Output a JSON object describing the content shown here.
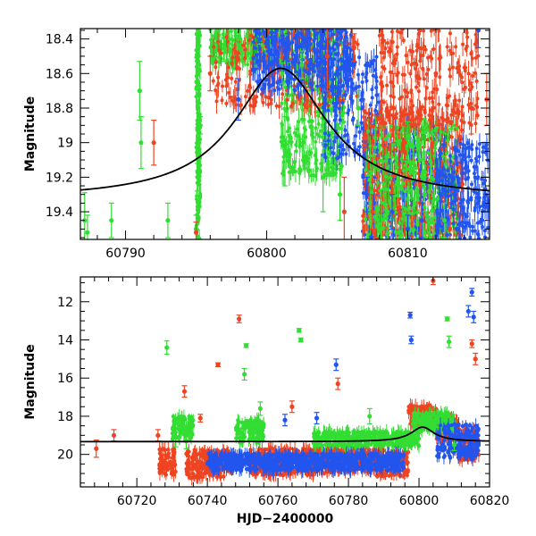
{
  "chart_data": [
    {
      "type": "scatter",
      "panel": "top",
      "title": "",
      "xlabel": "",
      "ylabel": "Magnitude",
      "xlim": [
        60786.8,
        60815.8
      ],
      "ylim": [
        19.56,
        18.34
      ],
      "y_inverted": true,
      "grid": false,
      "legend": "none",
      "xticks": [
        60790,
        60800,
        60810
      ],
      "yticks": [
        18.4,
        18.6,
        18.8,
        19,
        19.2,
        19.4
      ],
      "xtick_labels": [
        "60790",
        "60800",
        "60810"
      ],
      "ytick_labels": [
        "18.4",
        "18.6",
        "18.8",
        "19",
        "19.2",
        "19.4"
      ],
      "series": [
        {
          "color": "#33dd33",
          "points": [
            [
              60787.1,
              19.45,
              0.16
            ],
            [
              60787.3,
              19.52,
              0.1
            ],
            [
              60789.0,
              19.45,
              0.1
            ],
            [
              60791.0,
              18.7,
              0.17
            ],
            [
              60791.1,
              19.0,
              0.15
            ],
            [
              60793.0,
              19.45,
              0.1
            ],
            [
              60795.0,
              19.5,
              0.08
            ],
            [
              60795.1,
              19.2,
              0.08
            ],
            [
              60795.2,
              19.0,
              0.06
            ],
            [
              60795.3,
              18.9,
              0.05
            ],
            [
              60797.0,
              18.45,
              0.08
            ],
            [
              60798.0,
              18.4,
              0.06
            ],
            [
              60799.5,
              18.38,
              0.05
            ],
            [
              60801.1,
              18.6,
              0.06
            ],
            [
              60801.3,
              19.05,
              0.2
            ],
            [
              60802.5,
              18.55,
              0.08
            ],
            [
              60804.0,
              19.2,
              0.2
            ],
            [
              60805.2,
              19.3,
              0.15
            ],
            [
              60806.5,
              18.8,
              0.1
            ],
            [
              60808.1,
              19.5,
              0.08
            ],
            [
              60810.0,
              19.0,
              0.12
            ],
            [
              60811.2,
              19.3,
              0.1
            ],
            [
              60812.6,
              19.45,
              0.1
            ]
          ]
        },
        {
          "color": "#ee4422",
          "points": [
            [
              60792.0,
              19.0,
              0.13
            ],
            [
              60795.0,
              19.52,
              0.06
            ],
            [
              60796.0,
              18.6,
              0.1
            ],
            [
              60804.3,
              18.5,
              0.2
            ],
            [
              60805.5,
              19.4,
              0.2
            ],
            [
              60806.2,
              18.45,
              0.08
            ],
            [
              60807.5,
              19.4,
              0.1
            ],
            [
              60809.0,
              18.8,
              0.2
            ],
            [
              60809.8,
              19.0,
              0.1
            ],
            [
              60812.0,
              18.6,
              0.3
            ],
            [
              60813.0,
              19.5,
              0.08
            ],
            [
              60814.5,
              18.8,
              0.15
            ],
            [
              60815.6,
              18.75,
              0.15
            ]
          ]
        },
        {
          "color": "#2255ee",
          "points": [
            [
              60798.0,
              18.75,
              0.12
            ],
            [
              60799.5,
              18.37,
              0.05
            ],
            [
              60801.5,
              18.45,
              0.08
            ],
            [
              60803.0,
              18.6,
              0.08
            ],
            [
              60807.1,
              19.3,
              0.1
            ],
            [
              60808.9,
              19.4,
              0.1
            ],
            [
              60810.0,
              19.5,
              0.08
            ],
            [
              60811.0,
              19.45,
              0.1
            ],
            [
              60813.5,
              19.5,
              0.1
            ],
            [
              60815.0,
              18.35,
              0.1
            ],
            [
              60815.5,
              19.3,
              0.1
            ]
          ]
        }
      ],
      "model_curve": {
        "color": "#000000",
        "type": "peak",
        "baseline": 19.33,
        "peak_mag": 18.57,
        "t0": 60801.0,
        "width_days": 4.0
      }
    },
    {
      "type": "scatter",
      "panel": "bottom",
      "title": "",
      "xlabel": "HJD−2400000",
      "ylabel": "Magnitude",
      "xlim": [
        60704.0,
        60820.0
      ],
      "ylim": [
        21.7,
        10.7
      ],
      "y_inverted": true,
      "grid": false,
      "legend": "none",
      "xticks": [
        60720,
        60740,
        60760,
        60780,
        60800,
        60820
      ],
      "yticks": [
        12,
        14,
        16,
        18,
        20
      ],
      "xtick_labels": [
        "60720",
        "60740",
        "60760",
        "60780",
        "60800",
        "60820"
      ],
      "ytick_labels": [
        "12",
        "14",
        "16",
        "18",
        "20"
      ],
      "series": [
        {
          "color": "#ee4422",
          "points": [
            [
              60708.5,
              19.7,
              0.45
            ],
            [
              60713.5,
              19.0,
              0.3
            ],
            [
              60726.0,
              19.0,
              0.3
            ],
            [
              60733.5,
              16.7,
              0.3
            ],
            [
              60738.0,
              18.1,
              0.2
            ],
            [
              60743.0,
              15.3,
              0.1
            ],
            [
              60749.0,
              12.9,
              0.2
            ],
            [
              60764.0,
              17.5,
              0.3
            ],
            [
              60777.0,
              16.3,
              0.3
            ],
            [
              60804.0,
              10.9,
              0.2
            ],
            [
              60815.0,
              14.2,
              0.2
            ],
            [
              60816.0,
              15.0,
              0.3
            ]
          ],
          "bands": [
            [
              60726,
              60731,
              20.4,
              1.4
            ],
            [
              60734,
              60747,
              20.5,
              1.5
            ],
            [
              60752,
              60770,
              20.4,
              1.4
            ],
            [
              60770,
              60780,
              20.3,
              1.4
            ],
            [
              60780,
              60790,
              20.3,
              1.3
            ],
            [
              60788,
              60797,
              20.5,
              1.3
            ],
            [
              60797,
              60805,
              17.9,
              1.0
            ],
            [
              60805,
              60811,
              18.7,
              1.2
            ],
            [
              60811,
              60817,
              19.5,
              1.6
            ]
          ]
        },
        {
          "color": "#33dd33",
          "points": [
            [
              60728.5,
              14.4,
              0.35
            ],
            [
              60731.0,
              19.1,
              0.5
            ],
            [
              60734.0,
              19.3,
              0.4
            ],
            [
              60750.5,
              15.8,
              0.3
            ],
            [
              60751.0,
              14.3,
              0.1
            ],
            [
              60755.0,
              17.6,
              0.35
            ],
            [
              60766.0,
              13.5,
              0.1
            ],
            [
              60766.5,
              14.0,
              0.1
            ],
            [
              60786.0,
              18.0,
              0.4
            ],
            [
              60803.0,
              18.0,
              0.2
            ],
            [
              60808.0,
              12.9,
              0.1
            ],
            [
              60808.5,
              14.1,
              0.3
            ],
            [
              60810.0,
              19.5,
              0.3
            ]
          ],
          "bands": [
            [
              60730,
              60736,
              18.6,
              1.2
            ],
            [
              60748,
              60756,
              18.8,
              1.2
            ],
            [
              60770,
              60800,
              19.2,
              0.8
            ],
            [
              60798,
              60810,
              18.3,
              1.0
            ]
          ]
        },
        {
          "color": "#2255ee",
          "points": [
            [
              60762.0,
              18.2,
              0.3
            ],
            [
              60771.0,
              18.1,
              0.3
            ],
            [
              60776.5,
              15.3,
              0.3
            ],
            [
              60797.5,
              12.7,
              0.15
            ],
            [
              60797.8,
              14.0,
              0.2
            ],
            [
              60814.0,
              12.5,
              0.3
            ],
            [
              60815.0,
              11.5,
              0.2
            ],
            [
              60815.5,
              12.8,
              0.3
            ]
          ],
          "bands": [
            [
              60740,
              60796,
              20.4,
              0.9
            ],
            [
              60805,
              60817,
              19.3,
              1.8
            ]
          ]
        }
      ],
      "model_curve": {
        "color": "#000000",
        "type": "peak",
        "baseline": 19.33,
        "peak_mag": 18.57,
        "t0": 60801.0,
        "width_days": 4.0
      }
    }
  ]
}
